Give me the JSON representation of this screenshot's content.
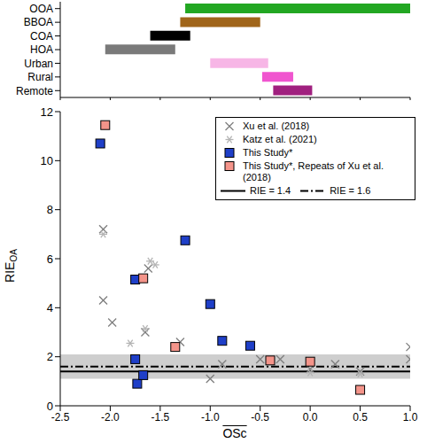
{
  "chart_data": [
    {
      "type": "bar",
      "orientation": "horizontal",
      "tick_labels": "y",
      "categories": [
        "OOA",
        "BBOA",
        "COA",
        "HOA",
        "Urban",
        "Rural",
        "Remote"
      ],
      "values": [
        [
          -1.25,
          1.0
        ],
        [
          -1.3,
          -0.5
        ],
        [
          -1.6,
          -1.2
        ],
        [
          -2.05,
          -1.35
        ],
        [
          -1.0,
          -0.42
        ],
        [
          -0.48,
          -0.17
        ],
        [
          -0.37,
          0.02
        ]
      ],
      "colors": [
        "#22a722",
        "#a0651a",
        "#000000",
        "#7a7a7a",
        "#f7b6e6",
        "#f055cf",
        "#a0207f"
      ],
      "xlim": [
        -2.5,
        1.0
      ],
      "xticks": [
        -2.5,
        {
          "value": -2,
          "label": "-2.0"
        },
        -1.5,
        {
          "value": -1,
          "label": "-1.0"
        },
        -0.5,
        {
          "value": 0,
          "label": "0.0"
        },
        0.5,
        {
          "value": 1,
          "label": "1.0"
        }
      ]
    },
    {
      "type": "scatter",
      "x_label": "OSc",
      "y_label": "RIE",
      "y_label_subscript": "OA",
      "xlim": [
        -2.5,
        1.0
      ],
      "xticks": [
        -2.5,
        {
          "value": -2,
          "label": "-2.0"
        },
        -1.5,
        {
          "value": -1,
          "label": "-1.0"
        },
        -0.5,
        {
          "value": 0,
          "label": "0.0"
        },
        0.5,
        {
          "value": 1,
          "label": "1.0"
        }
      ],
      "ylim": [
        0,
        12
      ],
      "yticks": [
        0,
        2,
        4,
        6,
        8,
        10,
        12
      ],
      "legend": "upper right",
      "series": [
        {
          "name": "Xu et al. (2018)",
          "color": "#7f7f7f",
          "marker": "x",
          "x": [
            -2.07,
            -2.07,
            -1.98,
            -1.65,
            -1.62,
            -1.3,
            -1.0,
            -0.88,
            -0.5,
            -0.3,
            0,
            0.25,
            0.5,
            1.0,
            1.0
          ],
          "values": [
            7.2,
            4.3,
            3.4,
            3.0,
            5.6,
            2.6,
            1.1,
            1.7,
            1.9,
            1.9,
            1.5,
            1.7,
            1.4,
            2.4,
            1.9
          ]
        },
        {
          "name": "Katz et al. (2021)",
          "color": "#b4b4b4",
          "marker": "asterisk",
          "x": [
            -2.07,
            -1.8,
            -1.65,
            -1.6,
            -1.55,
            0,
            0.5
          ],
          "values": [
            7.0,
            2.55,
            3.15,
            5.9,
            5.75,
            1.35,
            1.3
          ]
        },
        {
          "name": "This Study*",
          "color": "#1f3fc8",
          "marker": "square",
          "x": [
            -2.1,
            -1.75,
            -1.75,
            -1.73,
            -1.67,
            -1.25,
            -1.0,
            -0.88,
            -0.6
          ],
          "values": [
            10.7,
            5.15,
            1.9,
            0.9,
            1.25,
            6.75,
            4.15,
            2.65,
            2.45
          ]
        },
        {
          "name": "This Study*, Repeats of Xu et al. (2018)",
          "color": "#f4948a",
          "marker": "square",
          "x": [
            -2.05,
            -1.67,
            -1.35,
            -0.4,
            0,
            0.5
          ],
          "values": [
            11.45,
            5.2,
            2.4,
            1.85,
            1.8,
            0.65
          ]
        }
      ],
      "reference_lines": [
        {
          "name": "RIE = 1.4",
          "value": 1.4,
          "color": "#000000",
          "line_style": "solid"
        },
        {
          "name": "RIE = 1.6",
          "value": 1.6,
          "color": "#000000",
          "line_style": "dashdot"
        }
      ],
      "shaded_range": [
        1.1,
        2.1
      ]
    }
  ]
}
